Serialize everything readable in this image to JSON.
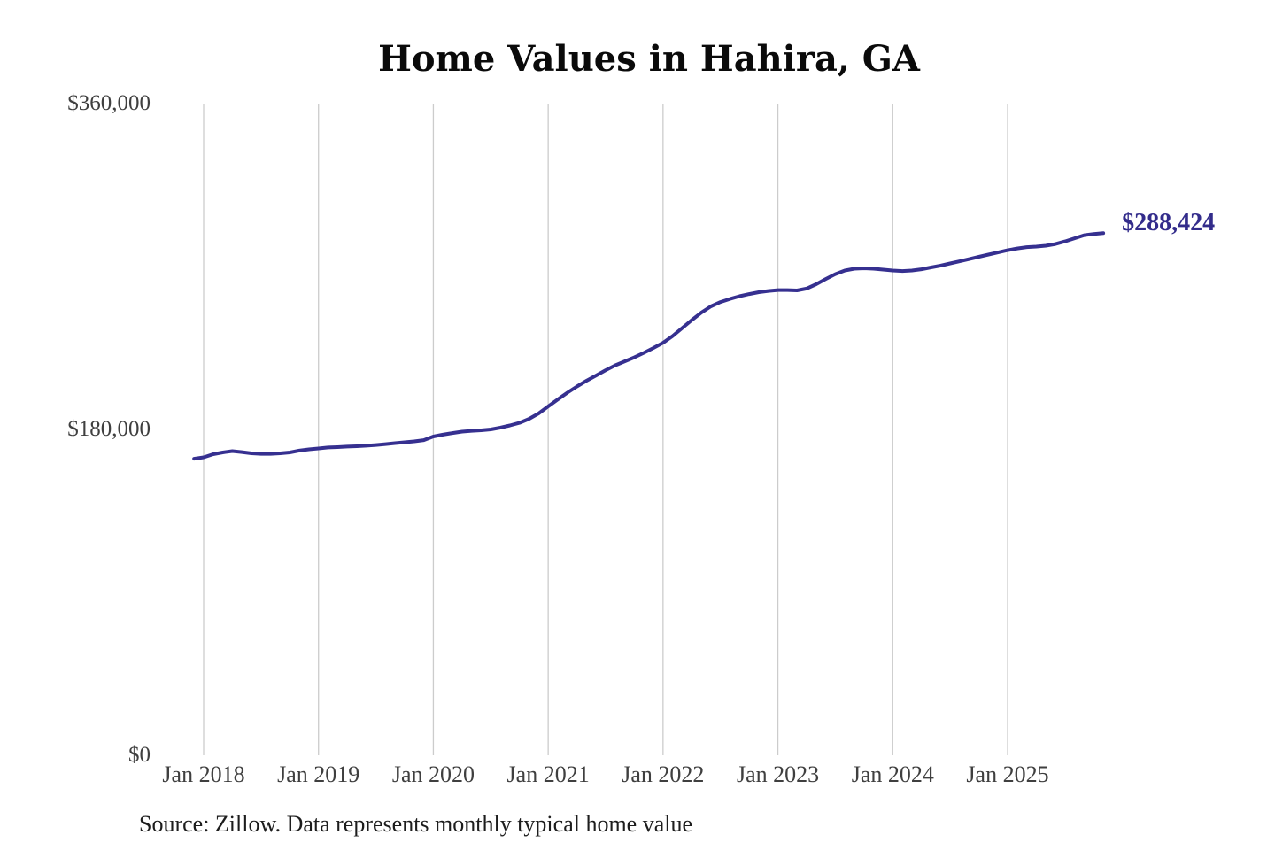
{
  "page": {
    "background": "#ffffff"
  },
  "chart_data": {
    "type": "line",
    "title": "Home Values in Hahira, GA",
    "source_note": "Source: Zillow. Data represents monthly typical home value",
    "series_name": "Monthly typical home value",
    "line_color": "#363090",
    "grid_color": "#cccccc",
    "tick_text_color": "#3f3f3f",
    "end_label": "$288,424",
    "end_value": 288424,
    "ylim": [
      0,
      360000
    ],
    "grid": "vertical-only",
    "legend": "none",
    "yticks": [
      {
        "value": 0,
        "label": "$0"
      },
      {
        "value": 180000,
        "label": "$180,000"
      },
      {
        "value": 360000,
        "label": "$360,000"
      }
    ],
    "xticks": [
      "Jan 2018",
      "Jan 2019",
      "Jan 2020",
      "Jan 2021",
      "Jan 2022",
      "Jan 2023",
      "Jan 2024",
      "Jan 2025"
    ],
    "x_months": [
      "2017-12",
      "2018-01",
      "2018-02",
      "2018-03",
      "2018-04",
      "2018-05",
      "2018-06",
      "2018-07",
      "2018-08",
      "2018-09",
      "2018-10",
      "2018-11",
      "2018-12",
      "2019-01",
      "2019-02",
      "2019-03",
      "2019-04",
      "2019-05",
      "2019-06",
      "2019-07",
      "2019-08",
      "2019-09",
      "2019-10",
      "2019-11",
      "2019-12",
      "2020-01",
      "2020-02",
      "2020-03",
      "2020-04",
      "2020-05",
      "2020-06",
      "2020-07",
      "2020-08",
      "2020-09",
      "2020-10",
      "2020-11",
      "2020-12",
      "2021-01",
      "2021-02",
      "2021-03",
      "2021-04",
      "2021-05",
      "2021-06",
      "2021-07",
      "2021-08",
      "2021-09",
      "2021-10",
      "2021-11",
      "2021-12",
      "2022-01",
      "2022-02",
      "2022-03",
      "2022-04",
      "2022-05",
      "2022-06",
      "2022-07",
      "2022-08",
      "2022-09",
      "2022-10",
      "2022-11",
      "2022-12",
      "2023-01",
      "2023-02",
      "2023-03",
      "2023-04",
      "2023-05",
      "2023-06",
      "2023-07",
      "2023-08",
      "2023-09",
      "2023-10",
      "2023-11",
      "2023-12",
      "2024-01",
      "2024-02",
      "2024-03",
      "2024-04",
      "2024-05",
      "2024-06",
      "2024-07",
      "2024-08",
      "2024-09",
      "2024-10",
      "2024-11",
      "2024-12",
      "2025-01",
      "2025-02",
      "2025-03",
      "2025-04",
      "2025-05",
      "2025-06",
      "2025-07",
      "2025-08",
      "2025-09",
      "2025-10",
      "2025-11"
    ],
    "values": [
      163800,
      164600,
      166300,
      167300,
      168000,
      167500,
      166800,
      166500,
      166500,
      166800,
      167300,
      168300,
      169000,
      169500,
      170000,
      170200,
      170500,
      170700,
      171000,
      171400,
      171900,
      172400,
      172900,
      173400,
      174100,
      176100,
      177100,
      178000,
      178800,
      179200,
      179500,
      180000,
      181000,
      182200,
      183600,
      185800,
      188800,
      192700,
      196600,
      200300,
      203700,
      206900,
      209800,
      212700,
      215400,
      217600,
      219800,
      222300,
      225000,
      227900,
      231600,
      236000,
      240400,
      244500,
      248000,
      250400,
      252100,
      253600,
      254800,
      255800,
      256500,
      257000,
      257000,
      256800,
      257800,
      260200,
      263100,
      265800,
      267800,
      268800,
      269000,
      268800,
      268300,
      267800,
      267500,
      267800,
      268500,
      269500,
      270500,
      271700,
      272900,
      274100,
      275400,
      276600,
      277800,
      279000,
      280000,
      280700,
      281000,
      281500,
      282400,
      283900,
      285600,
      287300,
      288000,
      288424
    ]
  }
}
